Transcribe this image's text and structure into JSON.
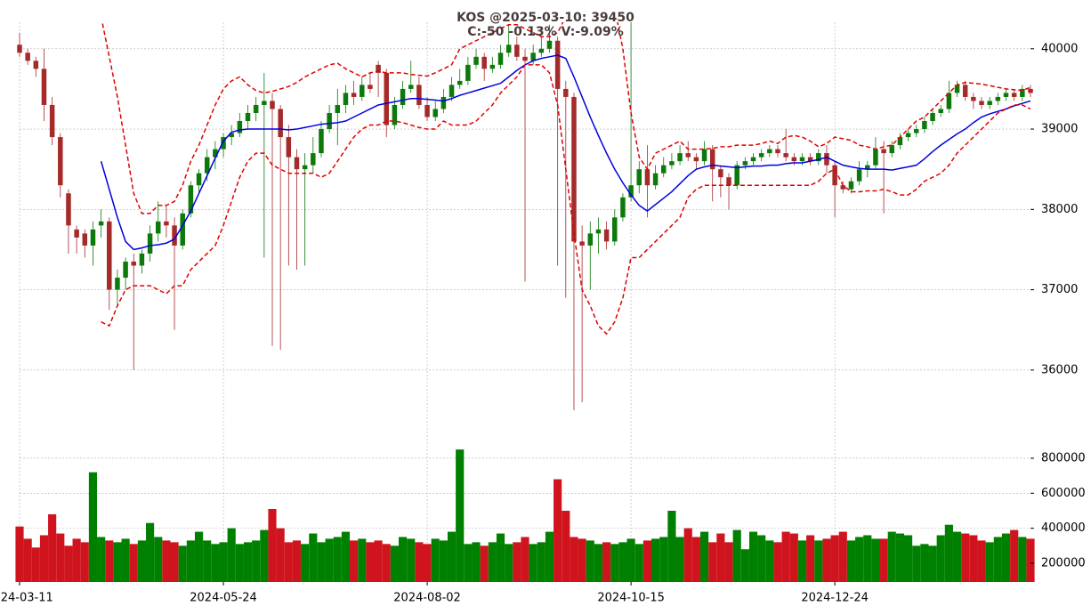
{
  "chart_data": {
    "type": "candlestick",
    "title": "KOS @2025-03-10: 39450",
    "subtitle": "C:-50 -0.13% V:-9.09%",
    "xlim": [
      0,
      124
    ],
    "xticks": [
      {
        "value": 0,
        "label": "2024-03-11"
      },
      {
        "value": 25,
        "label": "2024-05-24"
      },
      {
        "value": 50,
        "label": "2024-08-02"
      },
      {
        "value": 75,
        "label": "2024-10-15"
      },
      {
        "value": 100,
        "label": "2024-12-24"
      }
    ],
    "ylim": [
      35400,
      40330
    ],
    "yticks": [
      36000,
      37000,
      38000,
      39000,
      40000
    ],
    "grid": true,
    "up_color": "#0b7a0b",
    "down_color": "#a52a2a",
    "candles": [
      [
        40050,
        40200,
        39900,
        39950
      ],
      [
        39950,
        40000,
        39800,
        39850
      ],
      [
        39850,
        39900,
        39650,
        39750
      ],
      [
        39750,
        40000,
        39100,
        39300
      ],
      [
        39300,
        39400,
        38800,
        38900
      ],
      [
        38900,
        38950,
        38150,
        38300
      ],
      [
        38200,
        38250,
        37450,
        37800
      ],
      [
        37750,
        37800,
        37450,
        37650
      ],
      [
        37700,
        37750,
        37400,
        37550
      ],
      [
        37550,
        37850,
        37300,
        37750
      ],
      [
        37800,
        38000,
        37650,
        37850
      ],
      [
        37850,
        37900,
        36750,
        37000
      ],
      [
        37000,
        37250,
        36800,
        37150
      ],
      [
        37150,
        37400,
        37000,
        37350
      ],
      [
        37350,
        37450,
        36000,
        37300
      ],
      [
        37300,
        37500,
        37200,
        37450
      ],
      [
        37450,
        37800,
        37350,
        37700
      ],
      [
        37700,
        38100,
        37600,
        37850
      ],
      [
        37850,
        38050,
        37650,
        37800
      ],
      [
        37800,
        37900,
        36500,
        37550
      ],
      [
        37550,
        38000,
        37500,
        37950
      ],
      [
        37950,
        38350,
        37900,
        38300
      ],
      [
        38300,
        38500,
        38200,
        38450
      ],
      [
        38450,
        38750,
        38350,
        38650
      ],
      [
        38650,
        38850,
        38500,
        38750
      ],
      [
        38750,
        38950,
        38650,
        38900
      ],
      [
        38900,
        39050,
        38800,
        38950
      ],
      [
        38950,
        39200,
        38900,
        39100
      ],
      [
        39100,
        39300,
        39000,
        39200
      ],
      [
        39200,
        39400,
        39100,
        39300
      ],
      [
        39300,
        39700,
        37400,
        39350
      ],
      [
        39350,
        39450,
        36300,
        39250
      ],
      [
        39250,
        39300,
        36250,
        38900
      ],
      [
        38900,
        39050,
        37300,
        38650
      ],
      [
        38650,
        38750,
        37250,
        38500
      ],
      [
        38500,
        38700,
        37300,
        38550
      ],
      [
        38550,
        38900,
        38450,
        38700
      ],
      [
        38700,
        39100,
        38650,
        39000
      ],
      [
        39000,
        39300,
        38950,
        39200
      ],
      [
        39200,
        39500,
        38800,
        39300
      ],
      [
        39300,
        39550,
        39200,
        39450
      ],
      [
        39450,
        39600,
        39300,
        39400
      ],
      [
        39400,
        39650,
        39350,
        39550
      ],
      [
        39550,
        39700,
        39450,
        39500
      ],
      [
        39800,
        39850,
        39400,
        39700
      ],
      [
        39700,
        39750,
        38900,
        39050
      ],
      [
        39050,
        39400,
        39000,
        39300
      ],
      [
        39300,
        39600,
        39250,
        39500
      ],
      [
        39500,
        39850,
        39450,
        39550
      ],
      [
        39550,
        39650,
        39250,
        39300
      ],
      [
        39300,
        39400,
        39100,
        39150
      ],
      [
        39150,
        39350,
        39100,
        39250
      ],
      [
        39250,
        39500,
        39200,
        39400
      ],
      [
        39400,
        39650,
        39350,
        39550
      ],
      [
        39550,
        39750,
        39500,
        39600
      ],
      [
        39600,
        39900,
        39550,
        39800
      ],
      [
        39800,
        40000,
        39750,
        39900
      ],
      [
        39900,
        39950,
        39600,
        39750
      ],
      [
        39750,
        39900,
        39700,
        39800
      ],
      [
        39800,
        40050,
        39750,
        39950
      ],
      [
        39950,
        40300,
        39900,
        40050
      ],
      [
        40050,
        40150,
        39850,
        39900
      ],
      [
        39900,
        40000,
        37100,
        39850
      ],
      [
        39850,
        40050,
        39800,
        39950
      ],
      [
        39950,
        40150,
        39900,
        40000
      ],
      [
        40000,
        40300,
        39950,
        40100
      ],
      [
        40100,
        40150,
        37300,
        39500
      ],
      [
        39500,
        39600,
        36900,
        39400
      ],
      [
        39400,
        39450,
        35500,
        37600
      ],
      [
        37600,
        37800,
        35600,
        37550
      ],
      [
        37550,
        37850,
        37000,
        37700
      ],
      [
        37700,
        37900,
        37450,
        37750
      ],
      [
        37750,
        37850,
        37500,
        37600
      ],
      [
        37600,
        38000,
        37550,
        37900
      ],
      [
        37900,
        38200,
        37850,
        38150
      ],
      [
        38150,
        40350,
        38100,
        38300
      ],
      [
        38300,
        38600,
        38200,
        38500
      ],
      [
        38500,
        38800,
        37900,
        38300
      ],
      [
        38300,
        38550,
        38250,
        38450
      ],
      [
        38450,
        38650,
        38400,
        38550
      ],
      [
        38550,
        38700,
        38500,
        38600
      ],
      [
        38600,
        38800,
        38550,
        38700
      ],
      [
        38700,
        38850,
        38600,
        38650
      ],
      [
        38650,
        38700,
        38500,
        38600
      ],
      [
        38600,
        38850,
        38550,
        38750
      ],
      [
        38750,
        38800,
        38100,
        38500
      ],
      [
        38500,
        38550,
        38150,
        38400
      ],
      [
        38400,
        38450,
        38000,
        38300
      ],
      [
        38300,
        38600,
        38250,
        38550
      ],
      [
        38550,
        38650,
        38500,
        38600
      ],
      [
        38600,
        38700,
        38550,
        38650
      ],
      [
        38650,
        38750,
        38600,
        38700
      ],
      [
        38700,
        38800,
        38650,
        38750
      ],
      [
        38750,
        38800,
        38650,
        38700
      ],
      [
        38700,
        39000,
        38600,
        38650
      ],
      [
        38650,
        38700,
        38550,
        38600
      ],
      [
        38600,
        38700,
        38550,
        38650
      ],
      [
        38650,
        38700,
        38550,
        38600
      ],
      [
        38600,
        38750,
        38550,
        38700
      ],
      [
        38700,
        38800,
        38450,
        38550
      ],
      [
        38550,
        38600,
        37900,
        38300
      ],
      [
        38300,
        38350,
        38200,
        38250
      ],
      [
        38250,
        38400,
        38200,
        38350
      ],
      [
        38350,
        38600,
        38300,
        38500
      ],
      [
        38500,
        38600,
        38400,
        38550
      ],
      [
        38550,
        38900,
        38500,
        38750
      ],
      [
        38750,
        38850,
        37950,
        38700
      ],
      [
        38700,
        38850,
        38650,
        38800
      ],
      [
        38800,
        38950,
        38750,
        38900
      ],
      [
        38900,
        39000,
        38850,
        38950
      ],
      [
        38950,
        39050,
        38900,
        39000
      ],
      [
        39000,
        39150,
        38950,
        39100
      ],
      [
        39100,
        39250,
        39050,
        39200
      ],
      [
        39200,
        39300,
        39150,
        39250
      ],
      [
        39250,
        39600,
        39200,
        39450
      ],
      [
        39450,
        39600,
        39400,
        39550
      ],
      [
        39550,
        39600,
        39350,
        39400
      ],
      [
        39400,
        39450,
        39250,
        39350
      ],
      [
        39350,
        39400,
        39250,
        39300
      ],
      [
        39300,
        39400,
        39250,
        39350
      ],
      [
        39350,
        39450,
        39300,
        39400
      ],
      [
        39400,
        39500,
        39350,
        39450
      ],
      [
        39450,
        39500,
        39350,
        39400
      ],
      [
        39400,
        39550,
        39350,
        39500
      ],
      [
        39500,
        39550,
        39400,
        39450
      ]
    ],
    "overlays": [
      {
        "color": "#0000e0",
        "dash": false,
        "values": [
          null,
          null,
          null,
          null,
          null,
          null,
          null,
          null,
          null,
          null,
          38600,
          38250,
          37900,
          37600,
          37500,
          37520,
          37550,
          37560,
          37580,
          37630,
          37800,
          37980,
          38200,
          38420,
          38640,
          38850,
          38960,
          38990,
          39000,
          39000,
          39000,
          39000,
          39000,
          38990,
          39000,
          39020,
          39040,
          39060,
          39070,
          39080,
          39100,
          39150,
          39200,
          39250,
          39300,
          39320,
          39340,
          39360,
          39380,
          39380,
          39370,
          39360,
          39350,
          39380,
          39420,
          39450,
          39480,
          39510,
          39540,
          39570,
          39650,
          39730,
          39800,
          39850,
          39880,
          39900,
          39920,
          39880,
          39650,
          39400,
          39150,
          38920,
          38700,
          38500,
          38330,
          38180,
          38050,
          37980,
          38060,
          38140,
          38220,
          38320,
          38420,
          38500,
          38530,
          38550,
          38540,
          38530,
          38520,
          38530,
          38540,
          38540,
          38550,
          38550,
          38570,
          38580,
          38580,
          38600,
          38620,
          38650,
          38600,
          38550,
          38530,
          38510,
          38500,
          38500,
          38500,
          38490,
          38510,
          38530,
          38550,
          38630,
          38720,
          38800,
          38870,
          38940,
          39000,
          39080,
          39150,
          39190,
          39220,
          39250,
          39290,
          39320,
          39350
        ]
      },
      {
        "color": "#e00000",
        "dash": true,
        "values": [
          null,
          null,
          null,
          null,
          null,
          null,
          null,
          null,
          null,
          null,
          40400,
          39900,
          39400,
          38800,
          38200,
          37950,
          37950,
          38050,
          38050,
          38100,
          38300,
          38600,
          38800,
          39050,
          39300,
          39500,
          39600,
          39650,
          39550,
          39480,
          39450,
          39470,
          39500,
          39530,
          39580,
          39650,
          39700,
          39750,
          39800,
          39820,
          39750,
          39700,
          39650,
          39700,
          39720,
          39700,
          39700,
          39700,
          39680,
          39670,
          39660,
          39700,
          39750,
          39800,
          40000,
          40050,
          40100,
          40150,
          40200,
          40250,
          40300,
          40300,
          40250,
          40200,
          40150,
          40150,
          40200,
          40400,
          40500,
          40700,
          40800,
          40800,
          40700,
          40500,
          40000,
          39200,
          38650,
          38500,
          38700,
          38750,
          38800,
          38850,
          38750,
          38750,
          38750,
          38760,
          38780,
          38780,
          38800,
          38800,
          38800,
          38820,
          38850,
          38820,
          38900,
          38920,
          38900,
          38850,
          38780,
          38820,
          38900,
          38880,
          38860,
          38800,
          38780,
          38750,
          38780,
          38800,
          38900,
          39000,
          39100,
          39150,
          39250,
          39350,
          39450,
          39550,
          39580,
          39570,
          39560,
          39540,
          39520,
          39500,
          39490,
          39480,
          39520
        ]
      },
      {
        "color": "#e00000",
        "dash": true,
        "values": [
          null,
          null,
          null,
          null,
          null,
          null,
          null,
          null,
          null,
          null,
          36600,
          36550,
          36800,
          37000,
          37050,
          37050,
          37050,
          37000,
          36950,
          37050,
          37050,
          37250,
          37350,
          37450,
          37550,
          37800,
          38100,
          38400,
          38600,
          38700,
          38700,
          38550,
          38500,
          38450,
          38450,
          38450,
          38450,
          38400,
          38450,
          38600,
          38750,
          38900,
          39000,
          39050,
          39050,
          39100,
          39100,
          39080,
          39050,
          39020,
          39000,
          39000,
          39100,
          39050,
          39050,
          39050,
          39100,
          39200,
          39300,
          39450,
          39550,
          39650,
          39800,
          39800,
          39800,
          39700,
          39300,
          38500,
          37700,
          37000,
          36800,
          36550,
          36450,
          36600,
          36900,
          37400,
          37400,
          37500,
          37600,
          37700,
          37800,
          37900,
          38150,
          38250,
          38300,
          38300,
          38300,
          38300,
          38300,
          38300,
          38300,
          38300,
          38300,
          38300,
          38300,
          38300,
          38300,
          38300,
          38350,
          38450,
          38500,
          38300,
          38220,
          38220,
          38230,
          38230,
          38250,
          38220,
          38180,
          38180,
          38250,
          38350,
          38400,
          38450,
          38550,
          38700,
          38800,
          38900,
          39000,
          39100,
          39200,
          39250,
          39300,
          39300,
          39250
        ]
      }
    ],
    "volume": {
      "ylim": [
        93000,
        927000
      ],
      "yticks": [
        200000,
        400000,
        600000,
        800000
      ],
      "up_color": "#008000",
      "down_color": "#d0141e",
      "values": [
        410000,
        340000,
        290000,
        360000,
        480000,
        370000,
        300000,
        340000,
        320000,
        720000,
        350000,
        330000,
        320000,
        340000,
        310000,
        330000,
        430000,
        350000,
        330000,
        320000,
        300000,
        330000,
        380000,
        330000,
        310000,
        320000,
        400000,
        310000,
        320000,
        330000,
        390000,
        510000,
        400000,
        320000,
        330000,
        310000,
        370000,
        320000,
        340000,
        350000,
        380000,
        330000,
        340000,
        320000,
        330000,
        310000,
        300000,
        350000,
        340000,
        320000,
        310000,
        340000,
        330000,
        380000,
        850000,
        310000,
        320000,
        300000,
        320000,
        370000,
        310000,
        320000,
        350000,
        310000,
        320000,
        380000,
        680000,
        500000,
        350000,
        340000,
        330000,
        310000,
        320000,
        310000,
        320000,
        340000,
        310000,
        330000,
        340000,
        350000,
        500000,
        350000,
        400000,
        350000,
        380000,
        320000,
        370000,
        320000,
        390000,
        280000,
        380000,
        360000,
        330000,
        320000,
        380000,
        370000,
        330000,
        360000,
        330000,
        340000,
        360000,
        380000,
        330000,
        350000,
        360000,
        340000,
        340000,
        380000,
        370000,
        360000,
        300000,
        310000,
        300000,
        360000,
        420000,
        380000,
        370000,
        360000,
        330000,
        320000,
        350000,
        370000,
        390000,
        350000,
        340000
      ]
    }
  }
}
